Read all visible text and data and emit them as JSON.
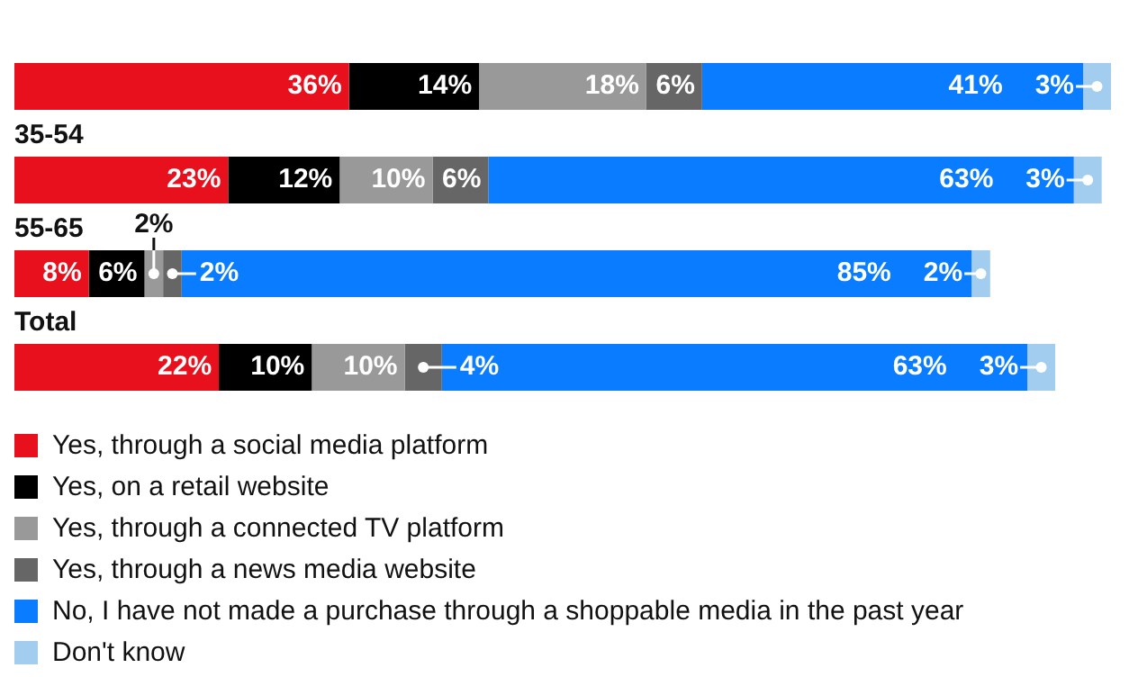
{
  "chart_data": {
    "type": "bar",
    "orientation": "horizontal",
    "stacked": true,
    "legend": "bottom",
    "categories": [
      null,
      "35-54",
      "55-65",
      "Total"
    ],
    "series": [
      {
        "name": "Yes, through a social media platform",
        "color": "#e8101c",
        "values": [
          36,
          23,
          8,
          22
        ],
        "value_labels": [
          "36%",
          "23%",
          "8%",
          "22%"
        ]
      },
      {
        "name": "Yes, on a retail website",
        "color": "#000000",
        "values": [
          14,
          12,
          6,
          10
        ],
        "value_labels": [
          "14%",
          "12%",
          "6%",
          "10%"
        ]
      },
      {
        "name": "Yes, through a connected TV platform",
        "color": "#999999",
        "values": [
          18,
          10,
          2,
          10
        ],
        "value_labels": [
          "18%",
          "10%",
          "2%",
          "10%"
        ]
      },
      {
        "name": "Yes, through a news media website",
        "color": "#666666",
        "values": [
          6,
          6,
          2,
          4
        ],
        "value_labels": [
          "6%",
          "6%",
          "2%",
          "4%"
        ]
      },
      {
        "name": "No, I have not made a purchase through a shoppable media in the past year",
        "color": "#0a7cff",
        "values": [
          41,
          63,
          85,
          63
        ],
        "value_labels": [
          "41%",
          "63%",
          "85%",
          "63%"
        ]
      },
      {
        "name": "Don't know",
        "color": "#a2cdef",
        "values": [
          3,
          3,
          2,
          3
        ],
        "value_labels": [
          "3%",
          "3%",
          "2%",
          "3%"
        ]
      }
    ]
  }
}
